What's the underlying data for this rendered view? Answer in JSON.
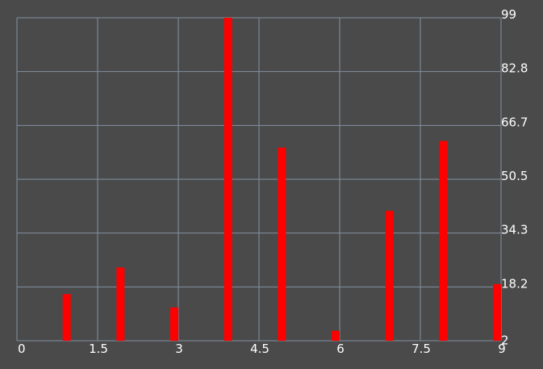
{
  "chart_data": {
    "type": "bar",
    "title": "",
    "xlabel": "",
    "ylabel": "",
    "x": [
      1,
      2,
      3,
      4,
      5,
      6,
      7,
      8,
      9
    ],
    "values": [
      16,
      24,
      12,
      99,
      60,
      5,
      41,
      62,
      19
    ],
    "xlim": [
      0,
      9
    ],
    "ylim": [
      2,
      99
    ],
    "x_ticks": [
      "0",
      "1.5",
      "3",
      "4.5",
      "6",
      "7.5",
      "9"
    ],
    "y_ticks": [
      "99",
      "82.8",
      "66.7",
      "50.5",
      "34.3",
      "18.2",
      "2"
    ],
    "grid": true,
    "legend": "none",
    "colors": {
      "bar": "#ff0000",
      "grid": "#8391a2",
      "background": "#4a4a4a",
      "text": "#ffffff"
    }
  }
}
